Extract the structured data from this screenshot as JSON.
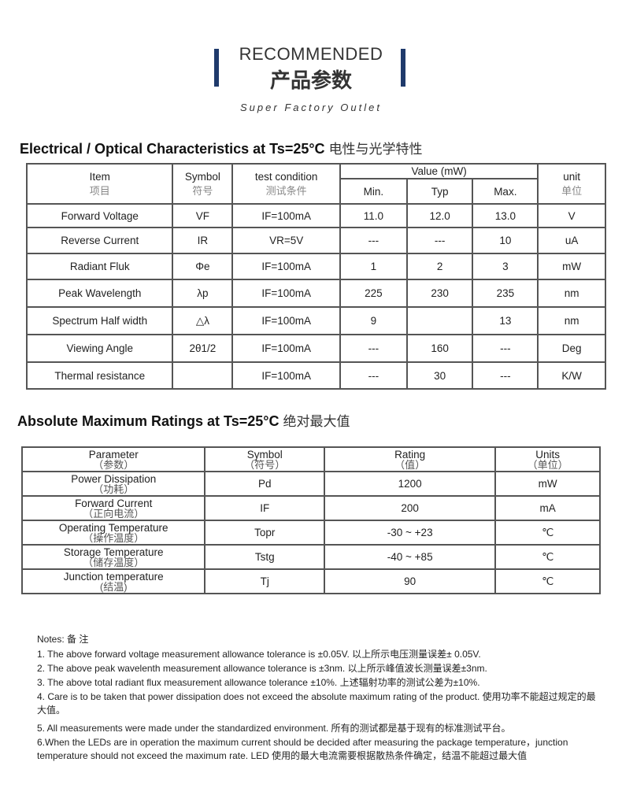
{
  "header": {
    "title_en": "RECOMMENDED",
    "title_cn": "产品参数",
    "subtitle": "Super Factory Outlet",
    "accent_color": "#1f3a6b"
  },
  "electrical": {
    "title": "Electrical / Optical Characteristics at Ts=25°C",
    "title_cn": "电性与光学特性",
    "headers": {
      "item": "Item",
      "item_cn": "项目",
      "symbol": "Symbol",
      "symbol_cn": "符号",
      "condition": "test condition",
      "condition_cn": "测试条件",
      "value": "Value (mW)",
      "min": "Min.",
      "typ": "Typ",
      "max": "Max.",
      "unit": "unit",
      "unit_cn": "单位"
    },
    "rows": [
      {
        "item": "Forward Voltage",
        "symbol": "VF",
        "condition": "IF=100mA",
        "min": "11.0",
        "typ": "12.0",
        "max": "13.0",
        "unit": "V"
      },
      {
        "item": "Reverse Current",
        "symbol": "IR",
        "condition": "VR=5V",
        "min": "---",
        "typ": "---",
        "max": "10",
        "unit": "uA"
      },
      {
        "item": "Radiant Fluk",
        "symbol": "Φe",
        "condition": "IF=100mA",
        "min": "1",
        "typ": "2",
        "max": "3",
        "unit": "mW"
      },
      {
        "item": "Peak Wavelength",
        "symbol": "λp",
        "condition": "IF=100mA",
        "min": "225",
        "typ": "230",
        "max": "235",
        "unit": "nm"
      },
      {
        "item": "Spectrum Half width",
        "symbol": "△λ",
        "condition": "IF=100mA",
        "min": "9",
        "typ": "",
        "max": "13",
        "unit": "nm"
      },
      {
        "item": "Viewing Angle",
        "symbol": "2θ1/2",
        "condition": "IF=100mA",
        "min": "---",
        "typ": "160",
        "max": "---",
        "unit": "Deg"
      },
      {
        "item": "Thermal resistance",
        "symbol": "",
        "condition": "IF=100mA",
        "min": "---",
        "typ": "30",
        "max": "---",
        "unit": "K/W"
      }
    ]
  },
  "absolute": {
    "title": "Absolute Maximum Ratings at Ts=25°C",
    "title_cn": "绝对最大值",
    "headers": {
      "parameter": "Parameter",
      "parameter_cn": "（参数）",
      "symbol": "Symbol",
      "symbol_cn": "（符号）",
      "rating": "Rating",
      "rating_cn": "（值）",
      "units": "Units",
      "units_cn": "（单位）"
    },
    "rows": [
      {
        "param": "Power Dissipation",
        "param_cn": "（功耗）",
        "symbol": "Pd",
        "rating": "1200",
        "unit": "mW"
      },
      {
        "param": "Forward Current",
        "param_cn": "（正向电流）",
        "symbol": "IF",
        "rating": "200",
        "unit": "mA"
      },
      {
        "param": "Operating Temperature",
        "param_cn": "（操作温度）",
        "symbol": "Topr",
        "rating": "-30 ~ +23",
        "unit": "℃"
      },
      {
        "param": "Storage Temperature",
        "param_cn": "（储存温度）",
        "symbol": "Tstg",
        "rating": "-40 ~ +85",
        "unit": "℃"
      },
      {
        "param": "Junction temperature",
        "param_cn": "(结温)",
        "symbol": "Tj",
        "rating": "90",
        "unit": "℃"
      }
    ]
  },
  "notes": {
    "title": "Notes: 备 注",
    "items": [
      "1. The above forward voltage measurement allowance tolerance is  ±0.05V.  以上所示电压测量误差± 0.05V.",
      "2. The above peak wavelenth measurement allowance tolerance is  ±3nm.  以上所示峰值波长测量误差±3nm.",
      "3. The above total radiant flux measurement allowance tolerance ±10%.  上述辐射功率的测试公差为±10%.",
      "4. Care is to be taken that power dissipation does not exceed the absolute maximum rating of the product.  使用功率不能超过规定的最大值。",
      "5. All measurements were made under the standardized environment.     所有的测试都是基于现有的标准测试平台。",
      "6.When the LEDs are in operation the maximum current should be decided after measuring the package temperature，junction temperature should not exceed the maximum rate. LED 使用的最大电流需要根据散热条件确定，结温不能超过最大值"
    ]
  }
}
